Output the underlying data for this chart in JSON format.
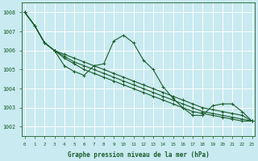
{
  "bg_color": "#c8eaf0",
  "grid_color": "#ffffff",
  "line_color": "#1a5c2a",
  "x_min": 0,
  "x_max": 23,
  "y_min": 1001.5,
  "y_max": 1008.5,
  "y_ticks": [
    1002,
    1003,
    1004,
    1005,
    1006,
    1007,
    1008
  ],
  "xlabel": "Graphe pression niveau de la mer (hPa)",
  "series": [
    [
      1008.0,
      1007.3,
      1006.4,
      1006.0,
      1005.2,
      1004.9,
      1004.7,
      1005.2,
      1005.3,
      1006.5,
      1006.8,
      1006.4,
      1005.5,
      1005.0,
      1004.1,
      1003.5,
      1003.0,
      1002.6,
      1002.6,
      1003.1,
      1003.2,
      1003.2,
      1002.8,
      1002.3
    ],
    [
      1008.0,
      1007.3,
      1006.4,
      1006.0,
      1005.8,
      1005.6,
      1005.4,
      1005.2,
      1005.0,
      1004.8,
      1004.6,
      1004.4,
      1004.2,
      1004.0,
      1003.8,
      1003.6,
      1003.4,
      1003.2,
      1003.0,
      1002.9,
      1002.8,
      1002.7,
      1002.6,
      1002.3
    ],
    [
      1008.0,
      1007.3,
      1006.4,
      1006.0,
      1005.7,
      1005.4,
      1005.2,
      1005.0,
      1004.8,
      1004.6,
      1004.4,
      1004.2,
      1004.0,
      1003.8,
      1003.6,
      1003.4,
      1003.2,
      1003.0,
      1002.8,
      1002.7,
      1002.6,
      1002.5,
      1002.4,
      1002.3
    ],
    [
      1008.0,
      1007.3,
      1006.4,
      1006.0,
      1005.6,
      1005.3,
      1005.0,
      1004.8,
      1004.6,
      1004.4,
      1004.2,
      1004.0,
      1003.8,
      1003.6,
      1003.4,
      1003.2,
      1003.0,
      1002.8,
      1002.7,
      1002.6,
      1002.5,
      1002.4,
      1002.3,
      1002.3
    ]
  ]
}
